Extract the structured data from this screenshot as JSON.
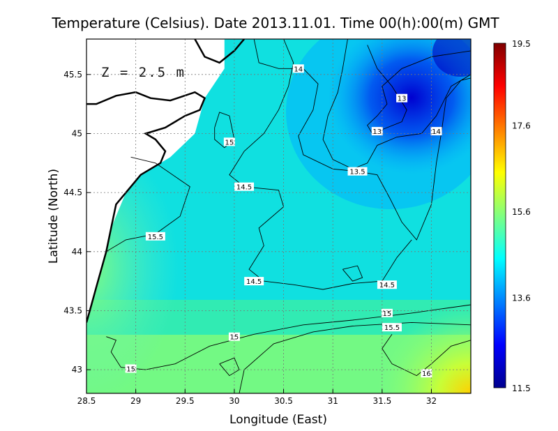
{
  "chart_data": {
    "type": "heatmap",
    "title": "Temperature (Celsius). Date 2013.11.01. Time 00(h):00(m) GMT",
    "xlabel": "Longitude (East)",
    "ylabel": "Latitude (North)",
    "annotation": "Z = 2.5 m",
    "xlim": [
      28.5,
      32.4
    ],
    "ylim": [
      42.8,
      45.8
    ],
    "x_ticks": [
      {
        "value": 28.5,
        "label": "28.5"
      },
      {
        "value": 29,
        "label": "29"
      },
      {
        "value": 29.5,
        "label": "29.5"
      },
      {
        "value": 30,
        "label": "30"
      },
      {
        "value": 30.5,
        "label": "30.5"
      },
      {
        "value": 31,
        "label": "31"
      },
      {
        "value": 31.5,
        "label": "31.5"
      },
      {
        "value": 32,
        "label": "32"
      }
    ],
    "y_ticks": [
      {
        "value": 43,
        "label": "43"
      },
      {
        "value": 43.5,
        "label": "43.5"
      },
      {
        "value": 44,
        "label": "44"
      },
      {
        "value": 44.5,
        "label": "44.5"
      },
      {
        "value": 45,
        "label": "45"
      },
      {
        "value": 45.5,
        "label": "45.5"
      }
    ],
    "grid": true,
    "colorbar": {
      "min": 11.5,
      "max": 19.5,
      "ticks": [
        {
          "value": 19.5,
          "label": "19.5"
        },
        {
          "value": 17.6,
          "label": "17.6"
        },
        {
          "value": 15.6,
          "label": "15.6"
        },
        {
          "value": 13.6,
          "label": "13.6"
        },
        {
          "value": 11.5,
          "label": "11.5"
        }
      ],
      "colors": [
        "#00008f",
        "#0000ff",
        "#0080ff",
        "#00ffff",
        "#80ff80",
        "#ffff00",
        "#ff8000",
        "#ff0000",
        "#800000"
      ]
    },
    "contours": [
      {
        "level": 13,
        "label": "13",
        "points": [
          [
            31.35,
            45.75
          ],
          [
            31.45,
            45.55
          ],
          [
            31.6,
            45.4
          ],
          [
            31.75,
            45.2
          ],
          [
            31.7,
            45.1
          ],
          [
            31.55,
            45.05
          ],
          [
            31.4,
            45.0
          ],
          [
            31.35,
            45.07
          ],
          [
            31.45,
            45.15
          ],
          [
            31.55,
            45.25
          ],
          [
            31.5,
            45.4
          ],
          [
            31.7,
            45.55
          ],
          [
            32.0,
            45.65
          ],
          [
            32.4,
            45.7
          ]
        ]
      },
      {
        "level": 13.5,
        "label": "13.5",
        "points": [
          [
            31.15,
            45.8
          ],
          [
            31.1,
            45.55
          ],
          [
            31.05,
            45.35
          ],
          [
            30.95,
            45.15
          ],
          [
            30.9,
            44.95
          ],
          [
            31.0,
            44.78
          ],
          [
            31.2,
            44.7
          ],
          [
            31.35,
            44.75
          ],
          [
            31.45,
            44.9
          ],
          [
            31.65,
            44.97
          ],
          [
            31.9,
            45.0
          ],
          [
            32.05,
            45.15
          ],
          [
            32.2,
            45.4
          ],
          [
            32.4,
            45.5
          ]
        ]
      },
      {
        "level": 14,
        "label": "14",
        "points": [
          [
            30.2,
            45.8
          ],
          [
            30.25,
            45.6
          ],
          [
            30.45,
            45.55
          ],
          [
            30.7,
            45.55
          ],
          [
            30.85,
            45.42
          ],
          [
            30.8,
            45.2
          ],
          [
            30.65,
            44.98
          ],
          [
            30.7,
            44.82
          ],
          [
            31.0,
            44.7
          ],
          [
            31.25,
            44.68
          ],
          [
            31.45,
            44.65
          ],
          [
            31.58,
            44.45
          ],
          [
            31.7,
            44.25
          ],
          [
            31.85,
            44.1
          ],
          [
            32.0,
            44.4
          ],
          [
            32.05,
            44.75
          ],
          [
            32.1,
            45.0
          ],
          [
            32.15,
            45.3
          ],
          [
            32.3,
            45.45
          ],
          [
            32.4,
            45.47
          ]
        ]
      },
      {
        "level": 14.5,
        "label": "14.5",
        "points": [
          [
            31.8,
            44.1
          ],
          [
            31.65,
            43.95
          ],
          [
            31.5,
            43.75
          ],
          [
            31.2,
            43.73
          ],
          [
            30.9,
            43.68
          ],
          [
            30.6,
            43.72
          ],
          [
            30.3,
            43.75
          ],
          [
            30.15,
            43.85
          ],
          [
            30.3,
            44.05
          ],
          [
            30.25,
            44.2
          ],
          [
            30.5,
            44.38
          ],
          [
            30.45,
            44.52
          ],
          [
            30.1,
            44.55
          ],
          [
            29.95,
            44.65
          ],
          [
            30.1,
            44.85
          ],
          [
            30.3,
            45.0
          ],
          [
            30.45,
            45.2
          ],
          [
            30.55,
            45.4
          ],
          [
            30.6,
            45.6
          ],
          [
            30.5,
            45.8
          ]
        ]
      },
      {
        "level": 15,
        "label": "15",
        "points": [
          [
            32.4,
            43.55
          ],
          [
            31.8,
            43.48
          ],
          [
            31.2,
            43.42
          ],
          [
            30.7,
            43.38
          ],
          [
            30.2,
            43.3
          ],
          [
            29.75,
            43.2
          ],
          [
            29.4,
            43.05
          ],
          [
            29.1,
            43.0
          ],
          [
            28.85,
            43.02
          ],
          [
            28.75,
            43.15
          ],
          [
            28.8,
            43.25
          ],
          [
            28.7,
            43.28
          ]
        ]
      },
      {
        "level": 15.5,
        "label": "15.5",
        "points": [
          [
            32.4,
            43.38
          ],
          [
            31.8,
            43.4
          ],
          [
            31.2,
            43.37
          ],
          [
            30.8,
            43.32
          ],
          [
            30.4,
            43.22
          ],
          [
            30.1,
            43.0
          ],
          [
            30.05,
            42.8
          ]
        ]
      },
      {
        "level": 16,
        "label": "16",
        "points": [
          [
            31.6,
            43.3
          ],
          [
            31.5,
            43.18
          ],
          [
            31.6,
            43.05
          ],
          [
            31.85,
            42.95
          ],
          [
            32.0,
            43.05
          ],
          [
            32.2,
            43.2
          ],
          [
            32.4,
            43.25
          ]
        ]
      },
      {
        "level": 15.5,
        "label": "15.5",
        "points": [
          [
            28.7,
            44.0
          ],
          [
            28.9,
            44.1
          ],
          [
            29.2,
            44.15
          ],
          [
            29.45,
            44.3
          ],
          [
            29.55,
            44.55
          ],
          [
            29.2,
            44.75
          ],
          [
            28.95,
            44.8
          ]
        ]
      },
      {
        "level": 15,
        "label": "15",
        "points": [
          [
            29.8,
            45.05
          ],
          [
            29.85,
            45.18
          ],
          [
            29.95,
            45.15
          ],
          [
            30.0,
            44.95
          ],
          [
            29.9,
            44.88
          ],
          [
            29.8,
            44.95
          ],
          [
            29.8,
            45.05
          ]
        ]
      },
      {
        "level": 14.5,
        "label": "",
        "points": [
          [
            31.1,
            43.85
          ],
          [
            31.2,
            43.75
          ],
          [
            31.3,
            43.78
          ],
          [
            31.25,
            43.88
          ],
          [
            31.1,
            43.85
          ]
        ]
      },
      {
        "level": 15.5,
        "label": "",
        "points": [
          [
            29.85,
            43.05
          ],
          [
            30.0,
            43.1
          ],
          [
            30.05,
            43.0
          ],
          [
            29.95,
            42.95
          ],
          [
            29.85,
            43.05
          ]
        ]
      }
    ],
    "coastline": [
      [
        28.5,
        43.4
      ],
      [
        28.55,
        43.55
      ],
      [
        28.6,
        43.7
      ],
      [
        28.65,
        43.85
      ],
      [
        28.7,
        44.0
      ],
      [
        28.75,
        44.2
      ],
      [
        28.8,
        44.4
      ],
      [
        28.95,
        44.55
      ],
      [
        29.05,
        44.65
      ],
      [
        29.25,
        44.75
      ],
      [
        29.3,
        44.85
      ],
      [
        29.2,
        44.95
      ],
      [
        29.1,
        45.0
      ],
      [
        29.3,
        45.05
      ],
      [
        29.5,
        45.15
      ],
      [
        29.65,
        45.2
      ],
      [
        29.7,
        45.3
      ],
      [
        29.6,
        45.35
      ],
      [
        29.35,
        45.28
      ],
      [
        29.15,
        45.3
      ],
      [
        29.0,
        45.35
      ],
      [
        28.8,
        45.32
      ],
      [
        28.6,
        45.25
      ],
      [
        28.5,
        45.25
      ]
    ],
    "land_top": [
      [
        29.6,
        45.8
      ],
      [
        29.7,
        45.65
      ],
      [
        29.85,
        45.6
      ],
      [
        30.0,
        45.7
      ],
      [
        30.1,
        45.8
      ]
    ],
    "data_labels": [
      {
        "text": "13",
        "x": 31.7,
        "y": 45.3
      },
      {
        "text": "13",
        "x": 31.45,
        "y": 45.02
      },
      {
        "text": "14",
        "x": 32.05,
        "y": 45.02
      },
      {
        "text": "14",
        "x": 30.65,
        "y": 45.55
      },
      {
        "text": "13.5",
        "x": 31.25,
        "y": 44.68
      },
      {
        "text": "15",
        "x": 29.95,
        "y": 44.93
      },
      {
        "text": "14.5",
        "x": 30.1,
        "y": 44.55
      },
      {
        "text": "15.5",
        "x": 29.2,
        "y": 44.13
      },
      {
        "text": "14.5",
        "x": 30.2,
        "y": 43.75
      },
      {
        "text": "14.5",
        "x": 31.55,
        "y": 43.72
      },
      {
        "text": "15",
        "x": 31.55,
        "y": 43.48
      },
      {
        "text": "15.5",
        "x": 31.6,
        "y": 43.36
      },
      {
        "text": "15",
        "x": 30.0,
        "y": 43.28
      },
      {
        "text": "15",
        "x": 28.95,
        "y": 43.01
      },
      {
        "text": "16",
        "x": 31.95,
        "y": 42.97
      }
    ]
  }
}
